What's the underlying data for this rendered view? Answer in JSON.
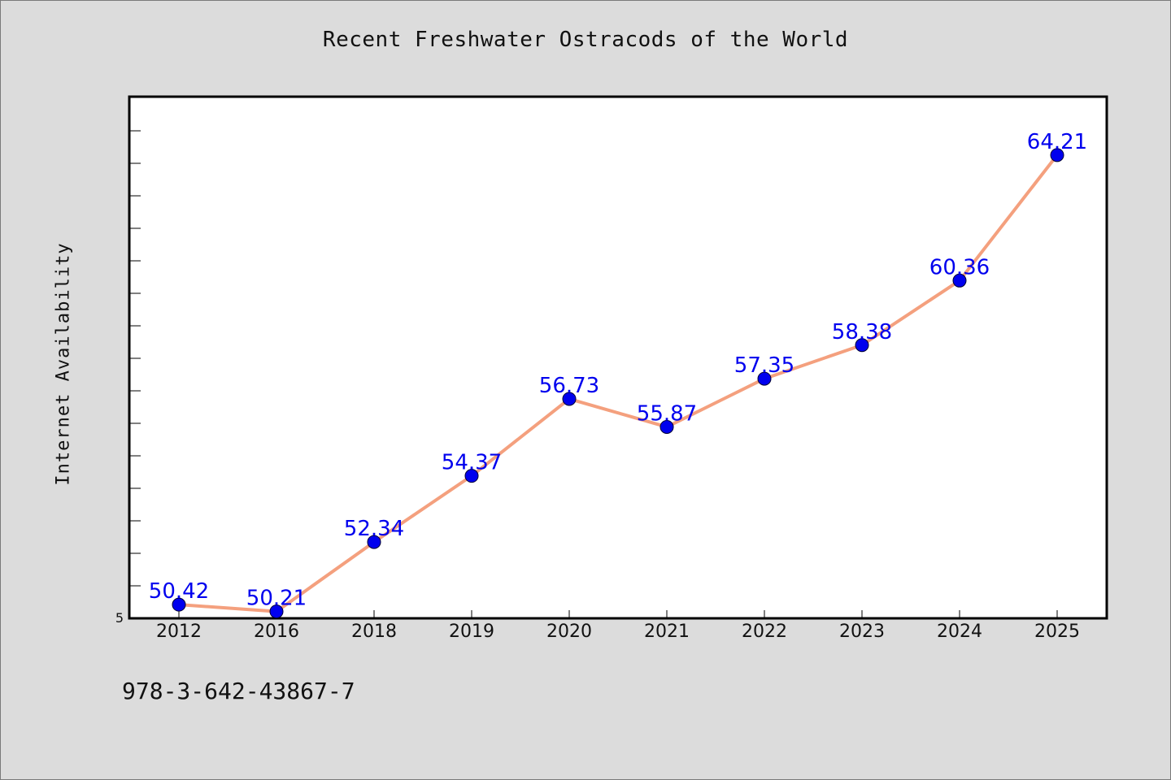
{
  "chart_data": {
    "type": "line",
    "title": "Recent Freshwater Ostracods of the World",
    "ylabel": "Internet Availability",
    "xlabel": "",
    "categories": [
      "2012",
      "2016",
      "2018",
      "2019",
      "2020",
      "2021",
      "2022",
      "2023",
      "2024",
      "2025"
    ],
    "series": [
      {
        "values": [
          50.42,
          50.21,
          52.34,
          54.37,
          56.73,
          55.87,
          57.35,
          58.38,
          60.36,
          64.21
        ],
        "line_color": "#f4a07e",
        "marker_color": "#0000ee"
      }
    ],
    "data_labels": [
      "50.42",
      "50.21",
      "52.34",
      "54.37",
      "56.73",
      "55.87",
      "57.35",
      "58.38",
      "60.36",
      "64.21"
    ],
    "ylim": [
      50,
      66
    ],
    "y_tick_label": "5",
    "grid": false,
    "legend": "none"
  },
  "footer": {
    "isbn": "978-3-642-43867-7"
  }
}
